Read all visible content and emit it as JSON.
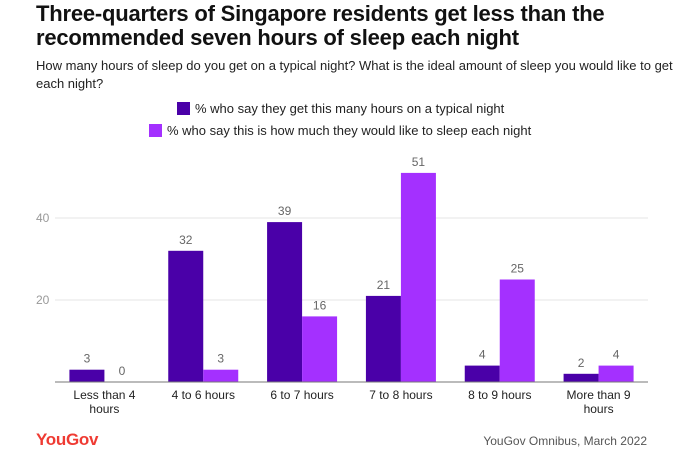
{
  "title": "Three-quarters of Singapore residents get less than the recommended seven hours of sleep each night",
  "subtitle": "How many hours of sleep do you get on a typical night? What is the ideal amount of sleep you would like to get each night?",
  "legend": [
    {
      "label": "% who say they get this many hours on a typical night",
      "color": "#4a00a8"
    },
    {
      "label": "% who say this is how much they would like to sleep each night",
      "color": "#a430ff"
    }
  ],
  "footer": {
    "logo": "YouGov",
    "source": "YouGov Omnibus, March 2022"
  },
  "chart_data": {
    "type": "bar",
    "categories": [
      [
        "Less than 4",
        "hours"
      ],
      [
        "4 to 6 hours"
      ],
      [
        "6 to 7 hours"
      ],
      [
        "7 to 8 hours"
      ],
      [
        "8 to 9 hours"
      ],
      [
        "More than 9",
        "hours"
      ]
    ],
    "series": [
      {
        "name": "% who say they get this many hours on a typical night",
        "values": [
          3,
          32,
          39,
          21,
          4,
          2
        ],
        "color": "#4a00a8"
      },
      {
        "name": "% who say this is how much they would like to sleep each night",
        "values": [
          0,
          3,
          16,
          51,
          25,
          4
        ],
        "color": "#a430ff"
      }
    ],
    "y_ticks": [
      20,
      40
    ],
    "ylim": [
      0,
      55
    ],
    "grid": true,
    "data_labels": true
  }
}
